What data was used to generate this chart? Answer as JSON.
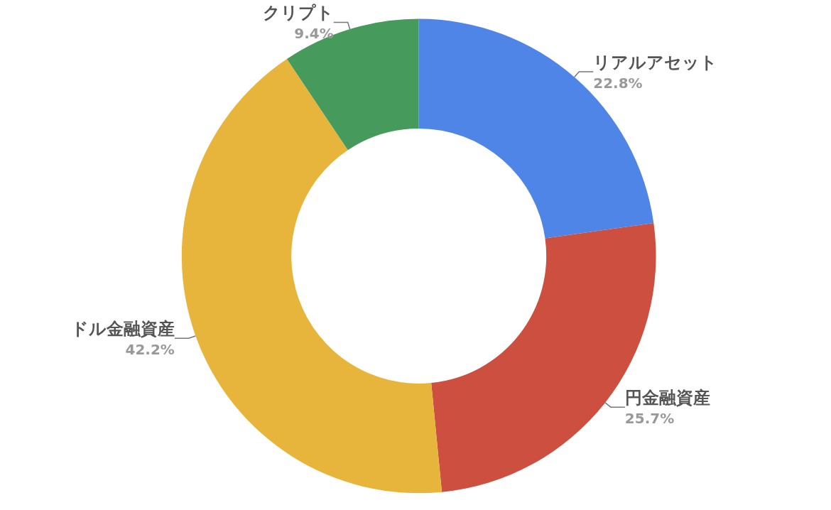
{
  "chart_data": {
    "type": "donut",
    "categories": [
      "リアルアセット",
      "円金融資産",
      "ドル金融資産",
      "クリプト"
    ],
    "values": [
      22.8,
      25.7,
      42.2,
      9.4
    ],
    "value_labels": [
      "22.8%",
      "25.7%",
      "42.2%",
      "9.4%"
    ],
    "colors": [
      "#5085e8",
      "#cc4f3f",
      "#e8b53c",
      "#459a5c"
    ],
    "legend": false
  }
}
